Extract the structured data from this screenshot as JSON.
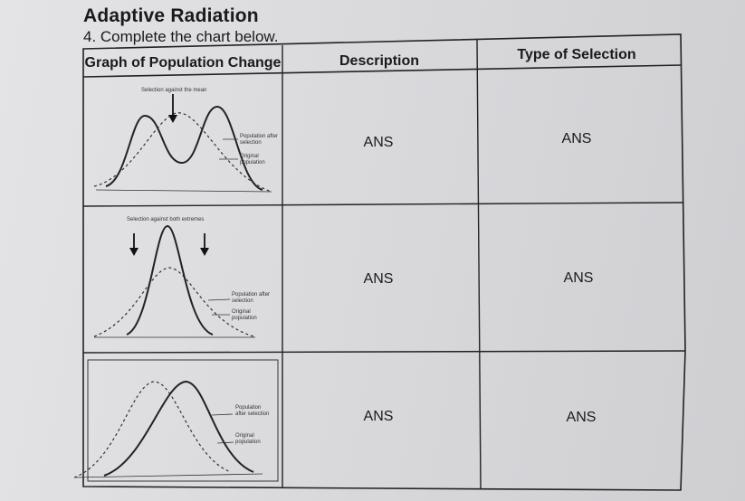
{
  "page": {
    "title": "Adaptive Radiation",
    "instruction": "4. Complete the chart below."
  },
  "table": {
    "headers": [
      "Graph of Population Change",
      "Description",
      "Type of Selection"
    ],
    "rows": [
      {
        "graph": {
          "caption": "Selection against the mean",
          "label_after": "Population after selection",
          "label_original": "Original population"
        },
        "description": "ANS",
        "type_of_selection": "ANS"
      },
      {
        "graph": {
          "caption": "Selection against both extremes",
          "label_after": "Population after selection",
          "label_original": "Original population"
        },
        "description": "ANS",
        "type_of_selection": "ANS"
      },
      {
        "graph": {
          "caption": "",
          "label_after": "Population after selection",
          "label_original": "Original population"
        },
        "description": "ANS",
        "type_of_selection": "ANS"
      }
    ]
  }
}
